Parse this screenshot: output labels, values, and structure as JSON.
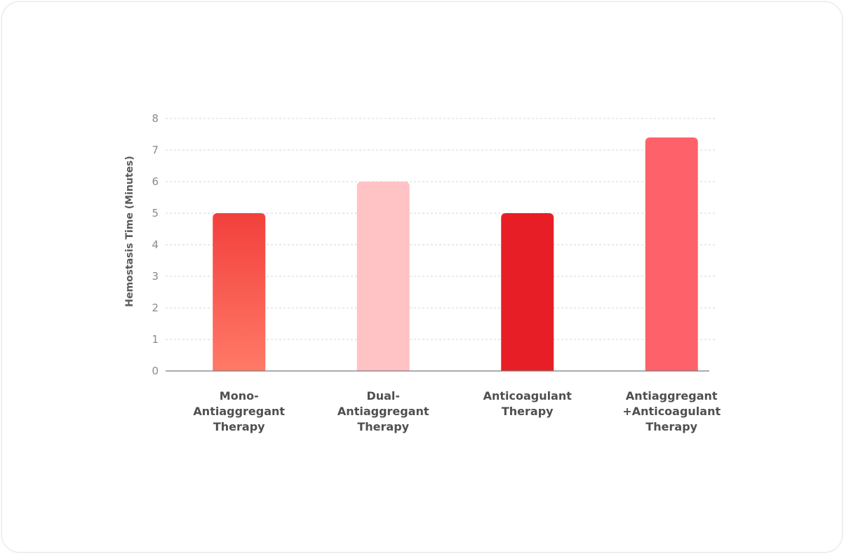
{
  "chart_data": {
    "type": "bar",
    "ylabel": "Hemostasis Time (Minutes)",
    "xlabel": "",
    "ylim": [
      0,
      8
    ],
    "yticks": [
      0,
      1,
      2,
      3,
      4,
      5,
      6,
      7,
      8
    ],
    "grid": true,
    "categories": [
      [
        "Mono-",
        "Antiaggregant",
        "Therapy"
      ],
      [
        "Dual-",
        "Antiaggregant",
        "Therapy"
      ],
      [
        "Anticoagulant",
        "Therapy"
      ],
      [
        "Antiaggregant",
        "+Anticoagulant",
        "Therapy"
      ]
    ],
    "values": [
      5,
      6,
      5,
      7.4
    ],
    "colors": [
      [
        "#f2403c",
        "#ff7a66"
      ],
      [
        "#ffc2c5",
        "#ffc2c5"
      ],
      [
        "#e81e27",
        "#e81e27"
      ],
      [
        "#ff616b",
        "#ff616b"
      ]
    ],
    "axis_color": "#7a7a7a",
    "grid_color": "#d6d6d6"
  }
}
